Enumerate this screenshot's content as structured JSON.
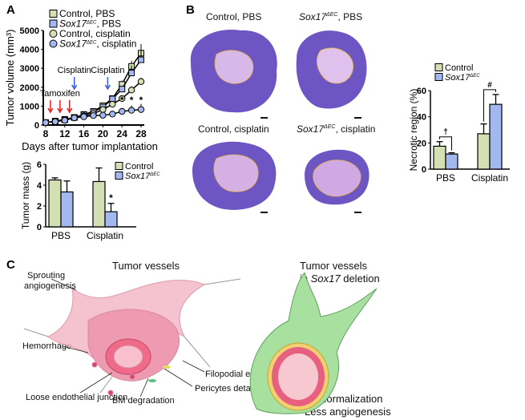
{
  "panels": {
    "a": "A",
    "b": "B",
    "c": "C"
  },
  "colors": {
    "control": "#d4e0b4",
    "sox17": "#a4b8f0",
    "cisplatin_arrow": "#3a5be0",
    "tamoxifen_arrow": "#e02020",
    "tissue": "#7a5cc8",
    "outline": "#f0c020"
  },
  "chart_data": [
    {
      "type": "line",
      "id": "tumor-volume",
      "xlabel": "Days after tumor implantation",
      "ylabel": "Tumor volume (mm³)",
      "xlim": [
        8,
        28
      ],
      "ylim": [
        0,
        5000
      ],
      "xticks": [
        "8",
        "12",
        "16",
        "20",
        "24",
        "28"
      ],
      "yticks": [
        "0",
        "1000",
        "2000",
        "3000",
        "4000",
        "5000"
      ],
      "x": [
        8,
        10,
        12,
        14,
        16,
        18,
        20,
        22,
        24,
        26,
        28
      ],
      "series": [
        {
          "name": "Control, PBS",
          "marker": "square",
          "color": "#d4e0b4",
          "values": [
            130,
            200,
            300,
            400,
            560,
            720,
            1020,
            1400,
            2150,
            3100,
            3800
          ],
          "err": [
            20,
            30,
            40,
            50,
            60,
            80,
            100,
            120,
            200,
            300,
            480
          ]
        },
        {
          "name": "Sox17ΔEC, PBS",
          "marker": "square",
          "color": "#a4b8f0",
          "values": [
            130,
            200,
            280,
            400,
            540,
            700,
            950,
            1380,
            1900,
            2750,
            3450
          ],
          "err": [
            20,
            30,
            40,
            50,
            60,
            80,
            100,
            120,
            150,
            400,
            600
          ]
        },
        {
          "name": "Control, cisplatin",
          "marker": "circle",
          "color": "#d4e0b4",
          "values": [
            130,
            200,
            280,
            380,
            480,
            600,
            820,
            1100,
            1400,
            1850,
            2300
          ],
          "err": [
            20,
            30,
            40,
            40,
            50,
            60,
            80,
            100,
            150,
            200,
            200
          ]
        },
        {
          "name": "Sox17ΔEC, cisplatin",
          "marker": "circle",
          "color": "#a4b8f0",
          "values": [
            130,
            180,
            250,
            380,
            440,
            500,
            520,
            580,
            720,
            780,
            820
          ],
          "err": [
            20,
            30,
            30,
            40,
            50,
            60,
            150,
            120,
            150,
            250,
            300
          ]
        }
      ],
      "significance": [
        {
          "x": 24,
          "label": "*"
        },
        {
          "x": 26,
          "label": "*"
        },
        {
          "x": 28,
          "label": "*"
        }
      ],
      "annotations": [
        {
          "text": "Tamoxifen",
          "days": [
            9,
            11,
            13
          ]
        },
        {
          "text": "Cisplatin",
          "days": [
            14
          ]
        },
        {
          "text": "Cisplatin",
          "days": [
            21
          ]
        }
      ],
      "legend": "top-left"
    },
    {
      "type": "bar",
      "id": "tumor-mass",
      "ylabel": "Tumor mass (g)",
      "ylim": [
        0,
        6
      ],
      "yticks": [
        "0",
        "2",
        "4",
        "6"
      ],
      "categories": [
        "PBS",
        "Cisplatin"
      ],
      "series": [
        {
          "name": "Control",
          "color": "#d4e0b4",
          "values": [
            4.5,
            4.35
          ],
          "err": [
            0.2,
            1.3
          ]
        },
        {
          "name": "Sox17ΔEC",
          "color": "#a4b8f0",
          "values": [
            3.35,
            1.45
          ],
          "err": [
            1.05,
            0.8
          ]
        }
      ],
      "significance": [
        {
          "category": "Cisplatin",
          "series": 1,
          "label": "*"
        }
      ],
      "legend": "top-right"
    },
    {
      "type": "bar",
      "id": "necrotic",
      "ylabel": "Necrotic region (%)",
      "ylim": [
        0,
        60
      ],
      "yticks": [
        "0",
        "20",
        "40",
        "60"
      ],
      "categories": [
        "PBS",
        "Cisplatin"
      ],
      "series": [
        {
          "name": "Control",
          "color": "#d4e0b4",
          "values": [
            17.5,
            27
          ],
          "err": [
            3.5,
            7.5
          ]
        },
        {
          "name": "Sox17ΔEC",
          "color": "#a4b8f0",
          "values": [
            11.5,
            49.5
          ],
          "err": [
            1,
            7.5
          ]
        }
      ],
      "significance": [
        {
          "category": "PBS",
          "label": "†"
        },
        {
          "category": "Cisplatin",
          "label": "#"
        }
      ],
      "legend": "top"
    }
  ],
  "images": {
    "ctrl_pbs": "Control, PBS",
    "sox_pbs_pre": "Sox17",
    "sox_pbs_post": ", PBS",
    "ctrl_cis": "Control, cisplatin",
    "sox_cis_pre": "Sox17",
    "sox_cis_post": ", cisplatin",
    "sup": "ΔEC"
  },
  "diagram": {
    "left_title": "Tumor vessels",
    "right_title_1": "Tumor vessels",
    "right_title_2_pre": "in ",
    "right_title_2_italic": "Sox17",
    "right_title_2_post": " deletion",
    "labels": {
      "sprouting": "Sprouting",
      "angiogenesis": "angiogenesis",
      "hemorrhage": "Hemorrhage",
      "filopodial": "Filopodial extension",
      "pericytes": "Pericytes detachment",
      "loose": "Loose endothelial junction",
      "bm": "BM degradation"
    },
    "right_caption_1": "Normalization",
    "right_caption_2": "Less angiogenesis"
  }
}
